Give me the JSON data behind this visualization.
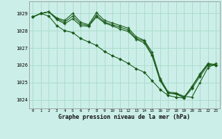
{
  "title": "Graphe pression niveau de la mer (hPa)",
  "background_color": "#cceee8",
  "grid_color": "#aaddcc",
  "line_color": "#1a5c1a",
  "xlim": [
    -0.5,
    23.5
  ],
  "ylim": [
    1023.5,
    1029.7
  ],
  "yticks": [
    1024,
    1025,
    1026,
    1027,
    1028,
    1029
  ],
  "xticks": [
    0,
    1,
    2,
    3,
    4,
    5,
    6,
    7,
    8,
    9,
    10,
    11,
    12,
    13,
    14,
    15,
    16,
    17,
    18,
    19,
    20,
    21,
    22,
    23
  ],
  "series1_x": [
    0,
    1,
    2,
    3,
    4,
    5,
    6,
    7,
    8,
    9,
    10,
    11,
    12,
    13,
    14,
    15,
    16,
    17,
    18,
    19,
    20,
    21,
    22,
    23
  ],
  "series1_y": [
    1028.8,
    1029.0,
    1029.1,
    1028.75,
    1028.6,
    1029.0,
    1028.5,
    1028.35,
    1029.05,
    1028.6,
    1028.45,
    1028.3,
    1028.15,
    1027.65,
    1027.45,
    1026.75,
    1025.25,
    1024.45,
    1024.4,
    1024.2,
    1024.15,
    1025.0,
    1025.85,
    1026.1
  ],
  "series2_x": [
    0,
    1,
    2,
    3,
    4,
    5,
    6,
    7,
    8,
    9,
    10,
    11,
    12,
    13,
    14,
    15,
    16,
    17,
    18,
    19,
    20,
    21,
    22,
    23
  ],
  "series2_y": [
    1028.8,
    1029.0,
    1029.1,
    1028.7,
    1028.5,
    1028.85,
    1028.4,
    1028.3,
    1028.9,
    1028.5,
    1028.35,
    1028.2,
    1028.05,
    1027.55,
    1027.4,
    1026.6,
    1025.15,
    1024.4,
    1024.35,
    1024.15,
    1024.75,
    1025.5,
    1026.1,
    1026.05
  ],
  "series3_x": [
    0,
    1,
    2,
    3,
    4,
    5,
    6,
    7,
    8,
    9,
    10,
    11,
    12,
    13,
    14,
    15,
    16,
    17,
    18,
    19,
    20,
    21,
    22,
    23
  ],
  "series3_y": [
    1028.8,
    1029.0,
    1029.1,
    1028.65,
    1028.4,
    1028.7,
    1028.3,
    1028.25,
    1028.8,
    1028.45,
    1028.28,
    1028.1,
    1027.95,
    1027.5,
    1027.3,
    1026.55,
    1025.1,
    1024.38,
    1024.33,
    1024.12,
    1024.78,
    1025.45,
    1026.08,
    1026.0
  ],
  "series4_x": [
    0,
    1,
    2,
    3,
    4,
    5,
    6,
    7,
    8,
    9,
    10,
    11,
    12,
    13,
    14,
    15,
    16,
    17,
    18,
    19,
    20,
    21,
    22,
    23
  ],
  "series4_y": [
    1028.8,
    1029.0,
    1028.85,
    1028.3,
    1028.0,
    1027.9,
    1027.55,
    1027.35,
    1027.15,
    1026.8,
    1026.55,
    1026.35,
    1026.1,
    1025.8,
    1025.6,
    1025.1,
    1024.6,
    1024.25,
    1024.15,
    1024.1,
    1024.65,
    1025.35,
    1026.0,
    1026.0
  ]
}
